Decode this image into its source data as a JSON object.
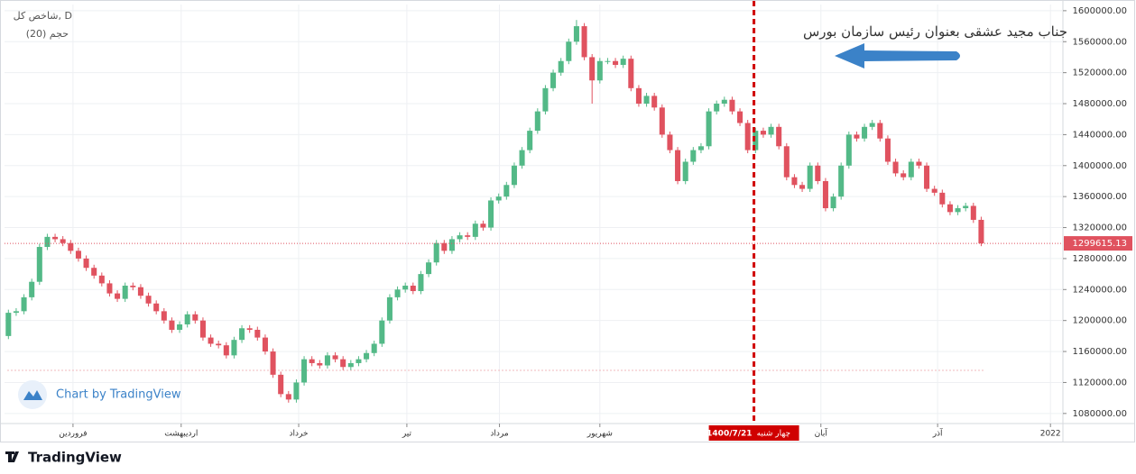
{
  "chart_data": {
    "type": "candlestick",
    "symbol_label": "شاخص کل, D",
    "volume_label": "حجم (20)",
    "annotation": "جناب مجید عشقی بعنوان رئیس سازمان بورس",
    "watermark": "Chart by TradingView",
    "brand": "TradingView",
    "up_color": "#53b987",
    "down_color": "#e0525f",
    "grid": true,
    "xlim": [
      -0.5,
      135.5
    ],
    "ylim": [
      1067000,
      1608000
    ],
    "xticks": [
      {
        "value": 8.3,
        "label": "فروردین"
      },
      {
        "value": 22.2,
        "label": "اردیبهشت"
      },
      {
        "value": 37.3,
        "label": "خرداد"
      },
      {
        "value": 51.2,
        "label": "تیر"
      },
      {
        "value": 63.1,
        "label": "مرداد"
      },
      {
        "value": 76,
        "label": "شهریور"
      },
      {
        "value": 104.4,
        "label": "آبان"
      },
      {
        "value": 119.4,
        "label": "آذر"
      },
      {
        "value": 133.9,
        "label": "2022"
      }
    ],
    "yticks": [
      {
        "value": 1080000,
        "label": "1080000.00"
      },
      {
        "value": 1120000,
        "label": "1120000.00"
      },
      {
        "value": 1160000,
        "label": "1160000.00"
      },
      {
        "value": 1200000,
        "label": "1200000.00"
      },
      {
        "value": 1240000,
        "label": "1240000.00"
      },
      {
        "value": 1280000,
        "label": "1280000.00"
      },
      {
        "value": 1320000,
        "label": "1320000.00"
      },
      {
        "value": 1360000,
        "label": "1360000.00"
      },
      {
        "value": 1400000,
        "label": "1400000.00"
      },
      {
        "value": 1440000,
        "label": "1440000.00"
      },
      {
        "value": 1480000,
        "label": "1480000.00"
      },
      {
        "value": 1520000,
        "label": "1520000.00"
      },
      {
        "value": 1560000,
        "label": "1560000.00"
      },
      {
        "value": 1600000,
        "label": "1600000.00"
      }
    ],
    "marker": {
      "x": 95.8,
      "date_label": "1400/7/21",
      "weekday_label": "چهار شنبه"
    },
    "last_price": 1299615.13,
    "x": [
      0,
      1,
      2,
      3,
      4,
      5,
      6,
      7,
      8,
      9,
      10,
      11,
      12,
      13,
      14,
      15,
      16,
      17,
      18,
      19,
      20,
      21,
      22,
      23,
      24,
      25,
      26,
      27,
      28,
      29,
      30,
      31,
      32,
      33,
      34,
      35,
      36,
      37,
      38,
      39,
      40,
      41,
      42,
      43,
      44,
      45,
      46,
      47,
      48,
      49,
      50,
      51,
      52,
      53,
      54,
      55,
      56,
      57,
      58,
      59,
      60,
      61,
      62,
      63,
      64,
      65,
      66,
      67,
      68,
      69,
      70,
      71,
      72,
      73,
      74,
      75,
      76,
      77,
      78,
      79,
      80,
      81,
      82,
      83,
      84,
      85,
      86,
      87,
      88,
      89,
      90,
      91,
      92,
      93,
      94,
      95,
      96,
      97,
      98,
      99,
      100,
      101,
      102,
      103,
      104,
      105,
      106,
      107,
      108,
      109,
      110,
      111,
      112,
      113,
      114,
      115,
      116,
      117,
      118,
      119,
      120,
      121,
      122,
      123,
      124,
      125
    ],
    "open": [
      1180000,
      1210000,
      1212000,
      1230000,
      1250000,
      1295000,
      1308000,
      1305000,
      1300000,
      1290000,
      1280000,
      1268000,
      1258000,
      1248000,
      1235000,
      1228000,
      1245000,
      1243000,
      1232000,
      1222000,
      1212000,
      1200000,
      1188000,
      1195000,
      1208000,
      1200000,
      1178000,
      1170000,
      1168000,
      1155000,
      1175000,
      1190000,
      1188000,
      1178000,
      1160000,
      1130000,
      1105000,
      1098000,
      1120000,
      1150000,
      1145000,
      1142000,
      1155000,
      1150000,
      1140000,
      1145000,
      1150000,
      1158000,
      1170000,
      1200000,
      1230000,
      1240000,
      1245000,
      1238000,
      1260000,
      1275000,
      1300000,
      1290000,
      1305000,
      1310000,
      1308000,
      1325000,
      1320000,
      1355000,
      1360000,
      1375000,
      1400000,
      1420000,
      1445000,
      1470000,
      1500000,
      1520000,
      1535000,
      1560000,
      1580000,
      1540000,
      1510000,
      1535000,
      1535000,
      1530000,
      1538000,
      1500000,
      1480000,
      1490000,
      1475000,
      1440000,
      1420000,
      1380000,
      1405000,
      1420000,
      1425000,
      1470000,
      1480000,
      1485000,
      1470000,
      1455000,
      1420000,
      1445000,
      1440000,
      1450000,
      1425000,
      1385000,
      1375000,
      1370000,
      1400000,
      1380000,
      1345000,
      1360000,
      1400000,
      1440000,
      1435000,
      1450000,
      1455000,
      1435000,
      1405000,
      1390000,
      1385000,
      1405000,
      1400000,
      1370000,
      1365000,
      1350000,
      1340000,
      1345000,
      1348000,
      1330000
    ],
    "high": [
      1214000,
      1216000,
      1234000,
      1254000,
      1299000,
      1312000,
      1312000,
      1309000,
      1304000,
      1294000,
      1284000,
      1272000,
      1262000,
      1252000,
      1239000,
      1249000,
      1249000,
      1247000,
      1236000,
      1226000,
      1216000,
      1204000,
      1199000,
      1212000,
      1212000,
      1204000,
      1182000,
      1174000,
      1172000,
      1179000,
      1194000,
      1194000,
      1192000,
      1182000,
      1164000,
      1134000,
      1109000,
      1124000,
      1154000,
      1154000,
      1149000,
      1159000,
      1159000,
      1154000,
      1149000,
      1154000,
      1162000,
      1174000,
      1204000,
      1234000,
      1244000,
      1249000,
      1249000,
      1264000,
      1279000,
      1304000,
      1304000,
      1309000,
      1314000,
      1314000,
      1329000,
      1329000,
      1359000,
      1364000,
      1379000,
      1404000,
      1424000,
      1449000,
      1474000,
      1504000,
      1524000,
      1539000,
      1564000,
      1588000,
      1584000,
      1544000,
      1539000,
      1539000,
      1539000,
      1542000,
      1542000,
      1504000,
      1494000,
      1494000,
      1479000,
      1444000,
      1424000,
      1409000,
      1424000,
      1429000,
      1474000,
      1484000,
      1489000,
      1489000,
      1474000,
      1459000,
      1449000,
      1449000,
      1454000,
      1454000,
      1429000,
      1389000,
      1379000,
      1404000,
      1404000,
      1384000,
      1364000,
      1404000,
      1444000,
      1444000,
      1454000,
      1459000,
      1459000,
      1439000,
      1409000,
      1394000,
      1409000,
      1409000,
      1404000,
      1374000,
      1369000,
      1354000,
      1349000,
      1352000,
      1352000,
      1334000
    ],
    "low": [
      1176000,
      1206000,
      1208000,
      1226000,
      1246000,
      1291000,
      1301000,
      1296000,
      1286000,
      1276000,
      1264000,
      1254000,
      1244000,
      1231000,
      1224000,
      1224000,
      1239000,
      1228000,
      1218000,
      1208000,
      1196000,
      1184000,
      1184000,
      1191000,
      1196000,
      1174000,
      1166000,
      1164000,
      1151000,
      1151000,
      1171000,
      1184000,
      1174000,
      1156000,
      1126000,
      1101000,
      1094000,
      1094000,
      1116000,
      1141000,
      1138000,
      1138000,
      1146000,
      1136000,
      1136000,
      1141000,
      1146000,
      1154000,
      1166000,
      1196000,
      1226000,
      1236000,
      1234000,
      1234000,
      1256000,
      1271000,
      1286000,
      1286000,
      1301000,
      1304000,
      1304000,
      1316000,
      1316000,
      1351000,
      1356000,
      1371000,
      1396000,
      1416000,
      1441000,
      1466000,
      1496000,
      1516000,
      1531000,
      1556000,
      1536000,
      1480000,
      1506000,
      1531000,
      1526000,
      1526000,
      1496000,
      1476000,
      1476000,
      1471000,
      1436000,
      1416000,
      1376000,
      1376000,
      1401000,
      1416000,
      1421000,
      1466000,
      1476000,
      1466000,
      1451000,
      1416000,
      1416000,
      1436000,
      1436000,
      1421000,
      1381000,
      1371000,
      1366000,
      1366000,
      1376000,
      1341000,
      1341000,
      1356000,
      1396000,
      1431000,
      1431000,
      1446000,
      1431000,
      1401000,
      1386000,
      1381000,
      1381000,
      1396000,
      1366000,
      1361000,
      1346000,
      1336000,
      1336000,
      1341000,
      1326000,
      1296000
    ],
    "close": [
      1210000,
      1212000,
      1230000,
      1250000,
      1295000,
      1308000,
      1305000,
      1300000,
      1290000,
      1280000,
      1268000,
      1258000,
      1248000,
      1235000,
      1228000,
      1245000,
      1243000,
      1232000,
      1222000,
      1212000,
      1200000,
      1188000,
      1195000,
      1208000,
      1200000,
      1178000,
      1170000,
      1168000,
      1155000,
      1175000,
      1190000,
      1188000,
      1178000,
      1160000,
      1130000,
      1105000,
      1098000,
      1120000,
      1150000,
      1145000,
      1142000,
      1155000,
      1150000,
      1140000,
      1145000,
      1150000,
      1158000,
      1170000,
      1200000,
      1230000,
      1240000,
      1245000,
      1238000,
      1260000,
      1275000,
      1300000,
      1290000,
      1305000,
      1310000,
      1308000,
      1325000,
      1320000,
      1355000,
      1360000,
      1375000,
      1400000,
      1420000,
      1445000,
      1470000,
      1500000,
      1520000,
      1535000,
      1560000,
      1580000,
      1540000,
      1510000,
      1535000,
      1535000,
      1530000,
      1538000,
      1500000,
      1480000,
      1490000,
      1475000,
      1440000,
      1420000,
      1380000,
      1405000,
      1420000,
      1425000,
      1470000,
      1480000,
      1485000,
      1470000,
      1455000,
      1420000,
      1445000,
      1440000,
      1450000,
      1425000,
      1385000,
      1375000,
      1370000,
      1400000,
      1380000,
      1345000,
      1360000,
      1400000,
      1440000,
      1435000,
      1450000,
      1455000,
      1435000,
      1405000,
      1390000,
      1385000,
      1405000,
      1400000,
      1370000,
      1365000,
      1350000,
      1340000,
      1345000,
      1348000,
      1330000,
      1299615.13
    ]
  }
}
